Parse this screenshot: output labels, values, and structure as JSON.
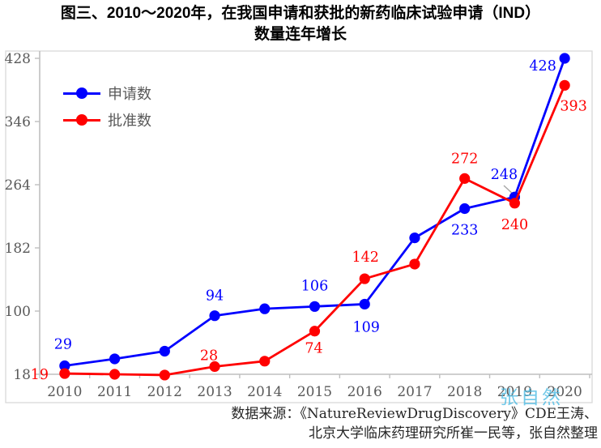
{
  "title": {
    "line1": "图三、2010～2020年，在我国申请和获批的新药临床试验申请（IND）",
    "line2": "数量连年增长"
  },
  "legend": {
    "items": [
      {
        "label": "申请数",
        "color": "#0000ff"
      },
      {
        "label": "批准数",
        "color": "#ff0000"
      }
    ]
  },
  "chart_data": {
    "type": "line",
    "title": "图三、2010～2020年，在我国申请和获批的新药临床试验申请（IND）数量连年增长",
    "categories": [
      "2010",
      "2011",
      "2012",
      "2013",
      "2014",
      "2015",
      "2016",
      "2017",
      "2018",
      "2019",
      "2020"
    ],
    "series": [
      {
        "name": "申请数",
        "color": "#0000ff",
        "values": [
          29,
          38,
          48,
          94,
          103,
          106,
          109,
          195,
          233,
          248,
          428
        ]
      },
      {
        "name": "批准数",
        "color": "#ff0000",
        "values": [
          19,
          18,
          17,
          28,
          35,
          74,
          142,
          161,
          272,
          240,
          393
        ]
      }
    ],
    "labeled_category_indices": [
      0,
      3,
      5,
      6,
      8,
      9,
      10
    ],
    "y_ticks": [
      18,
      100,
      182,
      264,
      346,
      428
    ],
    "ylim": [
      18,
      428
    ],
    "grid": false,
    "legend_position": "top-left",
    "axis_color": "#595959"
  },
  "watermark": {
    "text": "张自然"
  },
  "source": {
    "line1": "数据来源：《NatureReviewDrugDiscovery》CDE王涛、",
    "line2": "北京大学临床药理研究所崔一民等，张自然整理"
  }
}
